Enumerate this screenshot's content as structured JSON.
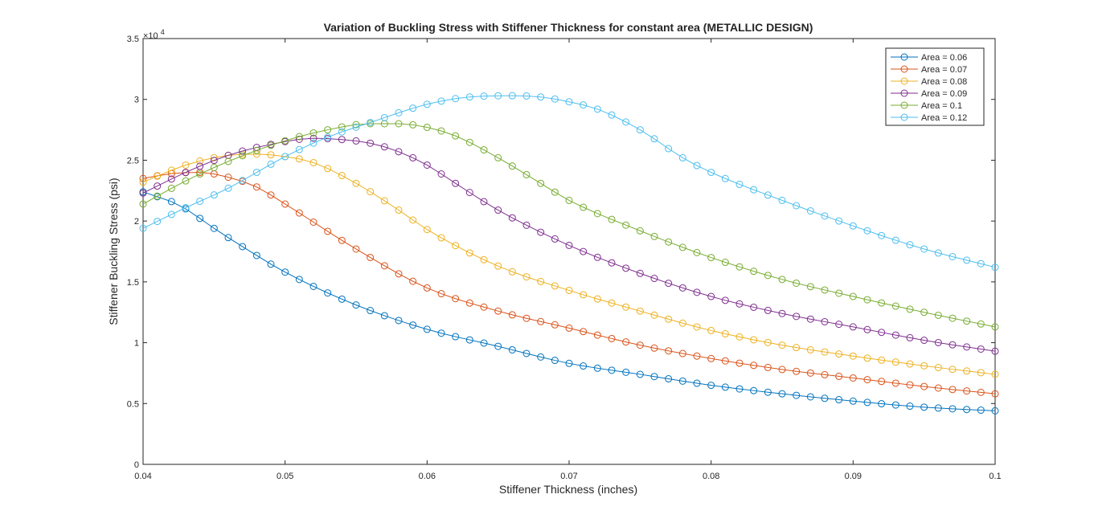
{
  "chart_data": {
    "type": "line",
    "title": "Variation of Buckling Stress with Stiffener Thickness for constant area (METALLIC DESIGN)",
    "xlabel": "Stiffener Thickness (inches)",
    "ylabel": "Stiffener Buckling Stress (psi)",
    "y_exponent_label": "×10",
    "y_exponent_value": "4",
    "xlim": [
      0.04,
      0.1
    ],
    "ylim": [
      0,
      35000
    ],
    "xticks": [
      0.04,
      0.05,
      0.06,
      0.07,
      0.08,
      0.09,
      0.1
    ],
    "xtick_labels": [
      "0.04",
      "0.05",
      "0.06",
      "0.07",
      "0.08",
      "0.09",
      "0.1"
    ],
    "yticks": [
      0,
      5000,
      10000,
      15000,
      20000,
      25000,
      30000,
      35000
    ],
    "ytick_labels": [
      "0",
      "0.5",
      "1",
      "1.5",
      "2",
      "2.5",
      "3",
      "3.5"
    ],
    "grid": false,
    "legend_position": "top-right",
    "marker": "circle",
    "x_step": 0.001,
    "series": [
      {
        "name": "Area = 0.06",
        "color": "#0072BD",
        "x": [
          0.04,
          0.041,
          0.042,
          0.043,
          0.045,
          0.047,
          0.05,
          0.055,
          0.06,
          0.065,
          0.07,
          0.075,
          0.08,
          0.085,
          0.09,
          0.095,
          0.1
        ],
        "y": [
          22400,
          22000,
          21600,
          21000,
          19400,
          17900,
          15800,
          13100,
          11100,
          9700,
          8300,
          7400,
          6500,
          5800,
          5200,
          4700,
          4400
        ]
      },
      {
        "name": "Area = 0.07",
        "color": "#D95319",
        "x": [
          0.04,
          0.042,
          0.044,
          0.046,
          0.048,
          0.05,
          0.055,
          0.06,
          0.065,
          0.07,
          0.075,
          0.08,
          0.085,
          0.09,
          0.095,
          0.1
        ],
        "y": [
          23500,
          23900,
          24000,
          23600,
          22800,
          21400,
          17700,
          14500,
          12600,
          11200,
          9800,
          8700,
          7800,
          7100,
          6400,
          5800
        ]
      },
      {
        "name": "Area = 0.08",
        "color": "#EDB120",
        "x": [
          0.04,
          0.043,
          0.046,
          0.048,
          0.05,
          0.052,
          0.055,
          0.058,
          0.06,
          0.065,
          0.07,
          0.075,
          0.08,
          0.085,
          0.09,
          0.095,
          0.1
        ],
        "y": [
          23200,
          24600,
          25400,
          25500,
          25300,
          24800,
          23100,
          20900,
          19300,
          16300,
          14300,
          12600,
          11000,
          9800,
          8900,
          8100,
          7400
        ]
      },
      {
        "name": "Area = 0.09",
        "color": "#7E2F8E",
        "x": [
          0.04,
          0.043,
          0.046,
          0.049,
          0.052,
          0.054,
          0.056,
          0.058,
          0.06,
          0.062,
          0.065,
          0.07,
          0.075,
          0.08,
          0.085,
          0.09,
          0.095,
          0.1
        ],
        "y": [
          22300,
          24000,
          25400,
          26300,
          26800,
          26700,
          26400,
          25700,
          24600,
          23100,
          20900,
          18000,
          15700,
          13800,
          12400,
          11300,
          10200,
          9300
        ]
      },
      {
        "name": "Area = 0.1",
        "color": "#77AC30",
        "x": [
          0.04,
          0.043,
          0.046,
          0.05,
          0.053,
          0.056,
          0.058,
          0.06,
          0.062,
          0.065,
          0.068,
          0.07,
          0.075,
          0.08,
          0.085,
          0.09,
          0.095,
          0.1
        ],
        "y": [
          21400,
          23300,
          24900,
          26600,
          27500,
          28000,
          28000,
          27700,
          27000,
          25200,
          23100,
          21700,
          19200,
          17000,
          15200,
          13800,
          12500,
          11300
        ]
      },
      {
        "name": "Area = 0.12",
        "color": "#4DBEEE",
        "x": [
          0.04,
          0.043,
          0.046,
          0.05,
          0.053,
          0.056,
          0.06,
          0.063,
          0.066,
          0.068,
          0.07,
          0.072,
          0.075,
          0.078,
          0.08,
          0.085,
          0.09,
          0.095,
          0.1
        ],
        "y": [
          19400,
          21100,
          22700,
          25300,
          26900,
          28100,
          29600,
          30200,
          30300,
          30200,
          29800,
          29200,
          27500,
          25200,
          24000,
          21700,
          19600,
          17700,
          16200
        ]
      }
    ]
  }
}
